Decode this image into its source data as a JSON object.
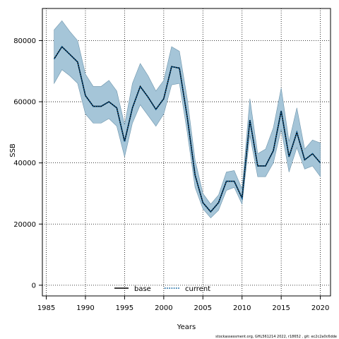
{
  "chart_data": {
    "type": "line",
    "xlabel": "Years",
    "ylabel": "SSB",
    "xlim": [
      1984.5,
      2021.3
    ],
    "ylim": [
      -3500,
      90500
    ],
    "xticks": [
      1985,
      1990,
      1995,
      2000,
      2005,
      2010,
      2015,
      2020
    ],
    "yticks": [
      0,
      20000,
      40000,
      60000,
      80000
    ],
    "grid": true,
    "legend_position": "bottom-center",
    "x": [
      1986,
      1987,
      1988,
      1989,
      1990,
      1991,
      1992,
      1993,
      1994,
      1995,
      1996,
      1997,
      1998,
      1999,
      2000,
      2001,
      2002,
      2003,
      2004,
      2005,
      2006,
      2007,
      2008,
      2009,
      2010,
      2011,
      2012,
      2013,
      2014,
      2015,
      2016,
      2017,
      2018,
      2019,
      2020
    ],
    "series": [
      {
        "name": "base",
        "color": "#000000",
        "style": "solid",
        "values": [
          74000,
          78000,
          75500,
          73000,
          62000,
          58500,
          58500,
          60000,
          58000,
          47000,
          58000,
          65000,
          61500,
          57500,
          61000,
          71500,
          71000,
          55000,
          36000,
          27000,
          24000,
          27000,
          34000,
          34000,
          28500,
          54000,
          39000,
          39000,
          44000,
          57000,
          42000,
          50000,
          41000,
          43000,
          40000
        ]
      },
      {
        "name": "current",
        "color": "#005a9a",
        "style": "dotted",
        "values": [
          74000,
          78000,
          75500,
          73000,
          62000,
          58500,
          58500,
          60000,
          58000,
          47000,
          58000,
          65000,
          61500,
          57500,
          61000,
          71500,
          71000,
          55000,
          36000,
          27000,
          24000,
          27000,
          34000,
          34000,
          28500,
          54000,
          39000,
          39000,
          44000,
          57000,
          42000,
          50000,
          41000,
          43000,
          40000
        ]
      }
    ],
    "band": {
      "color": "#a5c5d8",
      "lower": [
        66000,
        70500,
        68500,
        66000,
        56000,
        53000,
        53000,
        54500,
        52000,
        42000,
        53000,
        59000,
        55500,
        52000,
        56000,
        65500,
        66000,
        50000,
        32000,
        25000,
        22000,
        24500,
        31000,
        32000,
        26500,
        49000,
        35500,
        35500,
        40000,
        51000,
        37000,
        45000,
        38000,
        39000,
        35500
      ],
      "upper": [
        83500,
        86500,
        83000,
        80000,
        69000,
        65000,
        65000,
        67000,
        63500,
        52500,
        66000,
        72500,
        68500,
        63500,
        67000,
        78000,
        76500,
        61000,
        41000,
        30000,
        26500,
        29500,
        37000,
        37500,
        31500,
        61000,
        43000,
        44500,
        51500,
        64500,
        47000,
        58000,
        44500,
        47500,
        46500
      ]
    }
  },
  "footer_text": "stockassessment.org, GHL561214 2022, r18652 , git: ec2c2a0c6dde"
}
